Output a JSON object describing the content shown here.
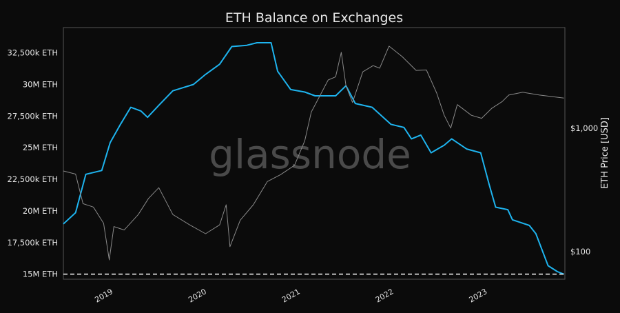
{
  "chart_data": {
    "type": "line",
    "title": "ETH Balance on Exchanges",
    "watermark": "glassnode",
    "xlabel": "",
    "ylabel_left": "",
    "ylabel_right": "ETH Price [USD]",
    "xlim": [
      2018.48,
      2023.84
    ],
    "ylim_left": [
      14.6,
      34.5
    ],
    "ylim_right_log": [
      60,
      6500
    ],
    "x_ticks": [
      {
        "value": 2019,
        "label": "2019"
      },
      {
        "value": 2020,
        "label": "2020"
      },
      {
        "value": 2021,
        "label": "2021"
      },
      {
        "value": 2022,
        "label": "2022"
      },
      {
        "value": 2023,
        "label": "2023"
      }
    ],
    "y_left_ticks": [
      {
        "value": 15,
        "label": "15M ETH"
      },
      {
        "value": 17.5,
        "label": "17,500k ETH"
      },
      {
        "value": 20,
        "label": "20M ETH"
      },
      {
        "value": 22.5,
        "label": "22,500k ETH"
      },
      {
        "value": 25,
        "label": "25M ETH"
      },
      {
        "value": 27.5,
        "label": "27,500k ETH"
      },
      {
        "value": 30,
        "label": "30M ETH"
      },
      {
        "value": 32.5,
        "label": "32,500k ETH"
      }
    ],
    "y_right_ticks": [
      {
        "value": 100,
        "label": "$100"
      },
      {
        "value": 1000,
        "label": "$1,000"
      }
    ],
    "reference_line": {
      "value": 15,
      "style": "dashed",
      "color": "#ffffff"
    },
    "series": [
      {
        "name": "ETH Balance on Exchanges (M ETH)",
        "axis": "left",
        "color": "#1eb4ef",
        "x": [
          2018.48,
          2018.61,
          2018.72,
          2018.89,
          2018.98,
          2019.09,
          2019.2,
          2019.31,
          2019.38,
          2019.5,
          2019.65,
          2019.87,
          2020.0,
          2020.15,
          2020.28,
          2020.44,
          2020.55,
          2020.7,
          2020.77,
          2020.91,
          2021.06,
          2021.17,
          2021.39,
          2021.5,
          2021.6,
          2021.78,
          2021.98,
          2022.12,
          2022.2,
          2022.3,
          2022.41,
          2022.55,
          2022.63,
          2022.79,
          2022.94,
          2023.03,
          2023.1,
          2023.23,
          2023.28,
          2023.46,
          2023.53,
          2023.66,
          2023.76,
          2023.83
        ],
        "values": [
          18.97,
          19.86,
          22.9,
          23.2,
          25.4,
          26.85,
          28.2,
          27.9,
          27.4,
          28.35,
          29.5,
          30.0,
          30.8,
          31.6,
          33.0,
          33.1,
          33.3,
          33.3,
          31.05,
          29.6,
          29.4,
          29.1,
          29.1,
          29.9,
          28.5,
          28.2,
          26.85,
          26.6,
          25.7,
          26.0,
          24.6,
          25.2,
          25.7,
          24.9,
          24.6,
          22.1,
          20.3,
          20.1,
          19.3,
          18.85,
          18.2,
          15.67,
          15.2,
          15.0
        ]
      },
      {
        "name": "ETH Price (USD)",
        "axis": "right",
        "color": "#8a8a8a",
        "x": [
          2018.48,
          2018.61,
          2018.69,
          2018.8,
          2018.91,
          2018.97,
          2019.02,
          2019.13,
          2019.28,
          2019.39,
          2019.5,
          2019.65,
          2019.83,
          2020.0,
          2020.15,
          2020.22,
          2020.26,
          2020.37,
          2020.51,
          2020.66,
          2020.8,
          2020.95,
          2021.06,
          2021.13,
          2021.2,
          2021.31,
          2021.39,
          2021.45,
          2021.5,
          2021.57,
          2021.68,
          2021.79,
          2021.86,
          2021.96,
          2022.1,
          2022.25,
          2022.36,
          2022.47,
          2022.55,
          2022.62,
          2022.69,
          2022.84,
          2022.95,
          2023.06,
          2023.17,
          2023.24,
          2023.39,
          2023.57,
          2023.83
        ],
        "values": [
          450,
          425,
          245,
          230,
          170,
          86,
          160,
          150,
          200,
          270,
          330,
          200,
          165,
          140,
          165,
          240,
          110,
          180,
          240,
          370,
          420,
          500,
          790,
          1350,
          1700,
          2450,
          2600,
          4100,
          2200,
          1610,
          2850,
          3200,
          3050,
          4600,
          3790,
          2930,
          2950,
          1920,
          1270,
          1000,
          1550,
          1270,
          1200,
          1450,
          1640,
          1850,
          1950,
          1850,
          1750
        ]
      }
    ]
  }
}
